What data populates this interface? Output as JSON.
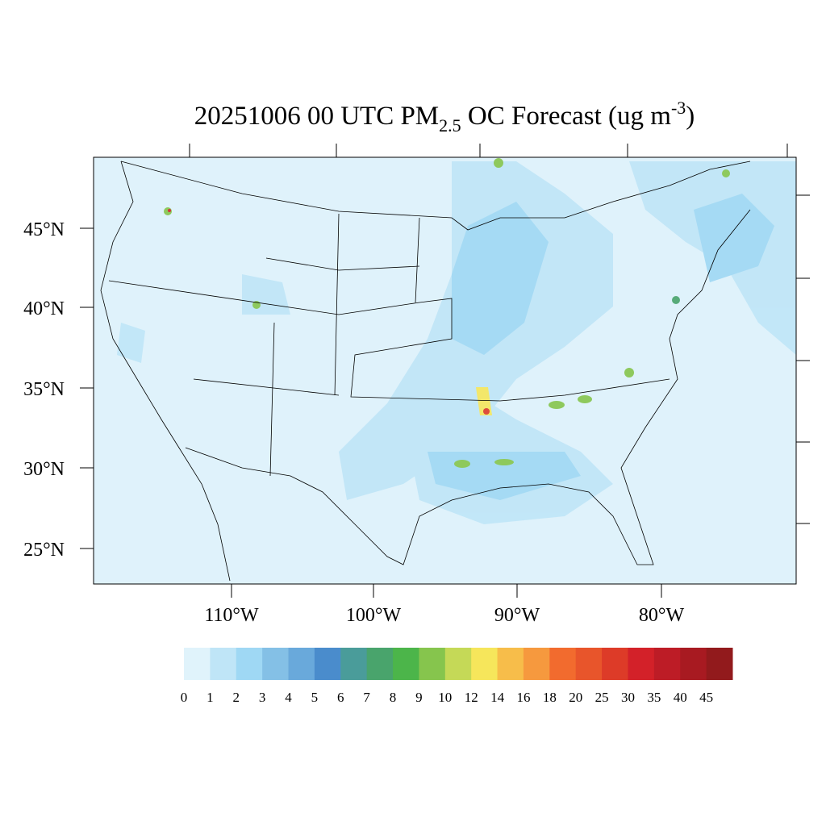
{
  "title": {
    "parts": [
      "20251006 00 UTC PM",
      "2.5",
      " OC Forecast (ug m",
      "-3",
      ")"
    ]
  },
  "map": {
    "lat_labels": [
      "45°N",
      "40°N",
      "35°N",
      "30°N",
      "25°N"
    ],
    "lon_labels": [
      "110°W",
      "100°W",
      "90°W",
      "80°W"
    ]
  },
  "colorbar": {
    "labels": [
      0,
      1,
      2,
      3,
      4,
      5,
      6,
      7,
      8,
      9,
      10,
      12,
      14,
      16,
      18,
      20,
      25,
      30,
      35,
      40,
      45
    ],
    "colors": [
      "#e0f3fb",
      "#bfe5f7",
      "#9fd8f4",
      "#84c0e6",
      "#69a9db",
      "#4a8ccc",
      "#4a9c9a",
      "#49a46c",
      "#4cb54a",
      "#86c54d",
      "#c5d957",
      "#f6e65b",
      "#f7bd4a",
      "#f6993e",
      "#f26b2e",
      "#e8552b",
      "#dd3b28",
      "#d32129",
      "#bd1c26",
      "#a81a21",
      "#921a1c"
    ]
  }
}
